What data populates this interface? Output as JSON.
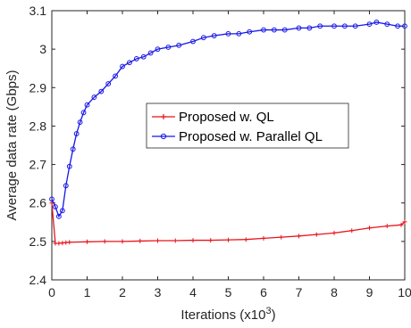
{
  "chart_data": {
    "type": "line",
    "xlabel": "Iterations (x10",
    "xlabel_sup": "3",
    "xlabel_end": ")",
    "ylabel": "Average data rate (Gbps)",
    "xlim": [
      0,
      10
    ],
    "ylim": [
      2.4,
      3.1
    ],
    "x_ticks": [
      "0",
      "1",
      "2",
      "3",
      "4",
      "5",
      "6",
      "7",
      "8",
      "9",
      "10"
    ],
    "y_ticks": [
      "2.4",
      "2.5",
      "2.6",
      "2.7",
      "2.8",
      "2.9",
      "3",
      "3.1"
    ],
    "grid": false,
    "legend_position": "center",
    "series": [
      {
        "name": "Proposed w. QL",
        "color": "#e8141c",
        "marker": "plus",
        "x": [
          0,
          0.1,
          0.2,
          0.3,
          0.4,
          0.5,
          1,
          1.5,
          2,
          2.5,
          3,
          3.5,
          4,
          4.5,
          5,
          5.5,
          6,
          6.5,
          7,
          7.5,
          8,
          8.5,
          9,
          9.5,
          9.9,
          10
        ],
        "y": [
          2.6,
          2.495,
          2.495,
          2.496,
          2.497,
          2.498,
          2.499,
          2.5,
          2.5,
          2.501,
          2.502,
          2.502,
          2.503,
          2.503,
          2.504,
          2.505,
          2.508,
          2.511,
          2.514,
          2.518,
          2.522,
          2.528,
          2.535,
          2.54,
          2.543,
          2.551
        ]
      },
      {
        "name": "Proposed w. Parallel QL",
        "color": "#1616e8",
        "marker": "circle",
        "x": [
          0,
          0.1,
          0.2,
          0.3,
          0.4,
          0.5,
          0.6,
          0.7,
          0.8,
          0.9,
          1.0,
          1.2,
          1.4,
          1.6,
          1.8,
          2.0,
          2.2,
          2.4,
          2.6,
          2.8,
          3.0,
          3.3,
          3.6,
          4.0,
          4.3,
          4.6,
          5.0,
          5.3,
          5.6,
          6.0,
          6.3,
          6.6,
          7.0,
          7.3,
          7.6,
          8.0,
          8.3,
          8.6,
          9.0,
          9.2,
          9.5,
          9.8,
          10
        ],
        "y": [
          2.61,
          2.59,
          2.565,
          2.58,
          2.645,
          2.695,
          2.74,
          2.78,
          2.81,
          2.835,
          2.855,
          2.875,
          2.89,
          2.91,
          2.93,
          2.955,
          2.965,
          2.975,
          2.98,
          2.99,
          3.0,
          3.005,
          3.01,
          3.02,
          3.03,
          3.035,
          3.04,
          3.04,
          3.045,
          3.05,
          3.05,
          3.05,
          3.055,
          3.055,
          3.06,
          3.06,
          3.06,
          3.06,
          3.065,
          3.07,
          3.065,
          3.06,
          3.06
        ]
      }
    ]
  }
}
